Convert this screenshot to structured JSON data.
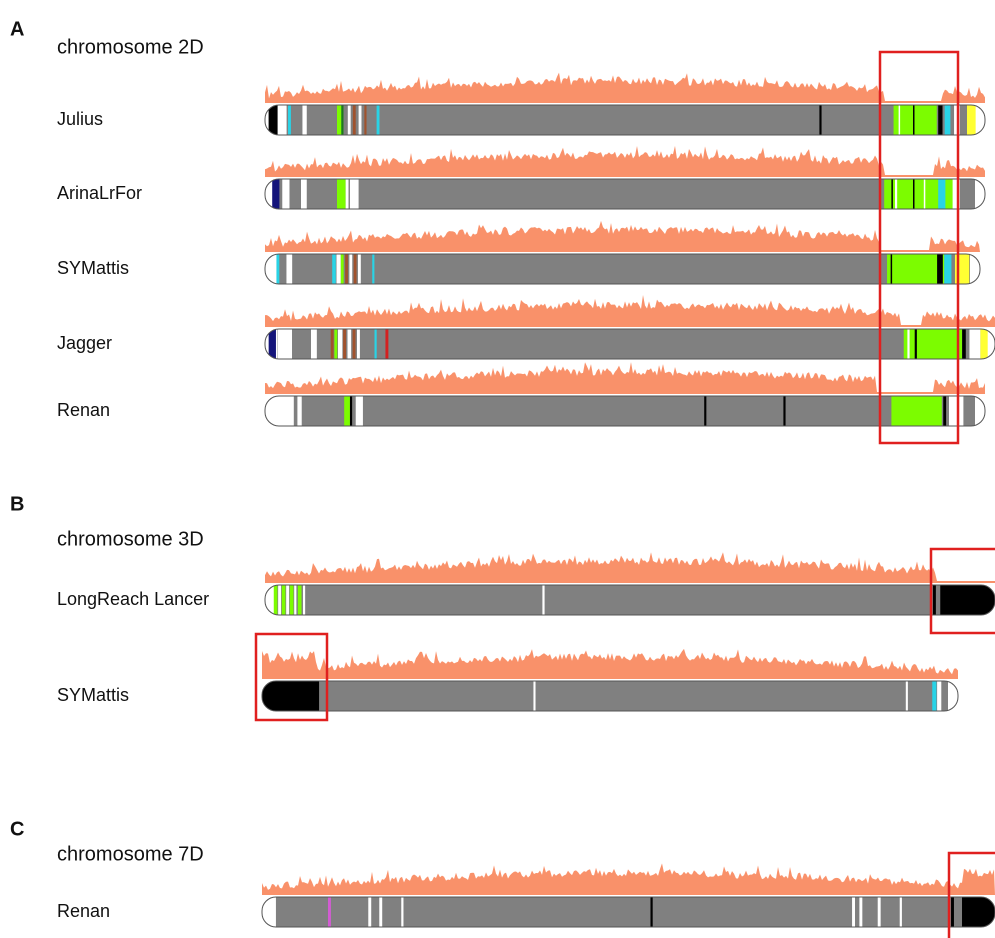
{
  "panels": [
    {
      "label": "A",
      "title": "chromosome 2D",
      "rows": [
        "Julius",
        "ArinaLrFor",
        "SYMattis",
        "Jagger",
        "Renan"
      ]
    },
    {
      "label": "B",
      "title": "chromosome 3D",
      "rows": [
        "LongReach Lancer",
        "SYMattis"
      ]
    },
    {
      "label": "C",
      "title": "chromosome 7D",
      "rows": [
        "Renan"
      ]
    }
  ]
}
